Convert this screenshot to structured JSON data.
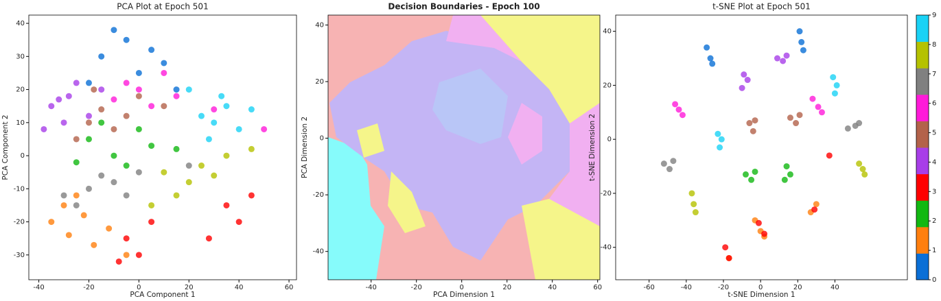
{
  "chart_data": [
    {
      "type": "scatter",
      "title": "PCA Plot at Epoch 501",
      "x_label": "PCA Component 1",
      "y_label": "PCA Component 2",
      "xlim": [
        -44,
        63
      ],
      "ylim": [
        -37.5,
        42.5
      ],
      "xticks": [
        -40,
        -20,
        0,
        20,
        40,
        60
      ],
      "yticks": [
        -30,
        -20,
        -10,
        0,
        10,
        20,
        30,
        40
      ],
      "series": [
        {
          "color": "#0a6fd6",
          "x": [
            -15,
            -5,
            0,
            5,
            10,
            -20,
            15,
            -10
          ],
          "y": [
            30,
            35,
            25,
            32,
            28,
            22,
            20,
            38
          ]
        },
        {
          "color": "#ff7f0e",
          "x": [
            -35,
            -28,
            -22,
            -30,
            -18,
            -12,
            -25,
            -5
          ],
          "y": [
            -20,
            -24,
            -18,
            -15,
            -27,
            -22,
            -12,
            -30
          ]
        },
        {
          "color": "#12b812",
          "x": [
            -20,
            -10,
            -5,
            5,
            -25,
            0,
            15,
            -15
          ],
          "y": [
            5,
            0,
            -3,
            3,
            -2,
            8,
            2,
            10
          ]
        },
        {
          "color": "#ff0000",
          "x": [
            -5,
            0,
            5,
            -8,
            35,
            40,
            45,
            28
          ],
          "y": [
            -25,
            -30,
            -20,
            -32,
            -15,
            -20,
            -12,
            -25
          ]
        },
        {
          "color": "#a83ee8",
          "x": [
            -35,
            -28,
            -20,
            -30,
            -38,
            -15,
            -25,
            -32
          ],
          "y": [
            15,
            18,
            12,
            10,
            8,
            20,
            22,
            17
          ]
        },
        {
          "color": "#b3624a",
          "x": [
            -20,
            -15,
            -10,
            -25,
            -5,
            0,
            -18,
            10
          ],
          "y": [
            10,
            14,
            8,
            5,
            12,
            18,
            20,
            15
          ]
        },
        {
          "color": "#ff1ad9",
          "x": [
            0,
            5,
            -5,
            15,
            30,
            50,
            10,
            -10
          ],
          "y": [
            20,
            15,
            22,
            18,
            14,
            8,
            25,
            17
          ]
        },
        {
          "color": "#808080",
          "x": [
            -30,
            -20,
            -15,
            -10,
            -25,
            0,
            -5,
            20
          ],
          "y": [
            -12,
            -10,
            -6,
            -8,
            -15,
            -5,
            -12,
            -3
          ]
        },
        {
          "color": "#b5c200",
          "x": [
            10,
            20,
            25,
            35,
            45,
            15,
            30,
            5
          ],
          "y": [
            -5,
            -8,
            -3,
            0,
            2,
            -12,
            -6,
            -15
          ]
        },
        {
          "color": "#1ad2f5",
          "x": [
            25,
            30,
            35,
            40,
            28,
            20,
            45,
            33
          ],
          "y": [
            12,
            10,
            15,
            8,
            5,
            20,
            14,
            18
          ]
        }
      ]
    },
    {
      "type": "decision-boundary",
      "title": "Decision Boundaries - Epoch 100",
      "x_label": "PCA Dimension 1",
      "y_label": "PCA Dimension 2",
      "xlim": [
        -59,
        61
      ],
      "ylim": [
        -50,
        43.5
      ],
      "xticks": [
        -40,
        -20,
        0,
        20,
        40,
        60
      ],
      "yticks": [
        -40,
        -20,
        0,
        20,
        40
      ]
    },
    {
      "type": "scatter",
      "title": "t-SNE Plot at Epoch 501",
      "x_label": "t-SNE Dimension 1",
      "y_label": "t-SNE Dimension 2",
      "xlim": [
        -78,
        79
      ],
      "ylim": [
        -52,
        46
      ],
      "xticks": [
        -60,
        -40,
        -20,
        0,
        20,
        40
      ],
      "yticks": [
        -40,
        -20,
        0,
        20,
        40
      ],
      "colorbar": {
        "lim": [
          0,
          9
        ],
        "ticks": [
          0,
          1,
          2,
          3,
          4,
          5,
          6,
          7,
          8,
          9
        ]
      },
      "series": [
        {
          "color": "#0a6fd6",
          "x": [
            -29,
            -27,
            -26,
            21,
            22,
            23
          ],
          "y": [
            34,
            30,
            28,
            40,
            36,
            33
          ]
        },
        {
          "color": "#ff7f0e",
          "x": [
            -3,
            0,
            2,
            30,
            27,
            -17
          ],
          "y": [
            -30,
            -34,
            -36,
            -24,
            -27,
            -44
          ]
        },
        {
          "color": "#12b812",
          "x": [
            14,
            16,
            13,
            -8,
            -5,
            -3
          ],
          "y": [
            -10,
            -13,
            -15,
            -13,
            -15,
            -12
          ]
        },
        {
          "color": "#ff0000",
          "x": [
            -19,
            -17,
            -1,
            2,
            37,
            29
          ],
          "y": [
            -40,
            -44,
            -31,
            -35,
            -6,
            -26
          ]
        },
        {
          "color": "#a83ee8",
          "x": [
            -9,
            -7,
            -10,
            9,
            12,
            14
          ],
          "y": [
            24,
            22,
            19,
            30,
            29,
            31
          ]
        },
        {
          "color": "#b3624a",
          "x": [
            -6,
            -4,
            -3,
            16,
            19,
            21
          ],
          "y": [
            6,
            3,
            7,
            8,
            6,
            9
          ]
        },
        {
          "color": "#ff1ad9",
          "x": [
            -46,
            -44,
            -42,
            28,
            31,
            33
          ],
          "y": [
            13,
            11,
            9,
            15,
            12,
            10
          ]
        },
        {
          "color": "#808080",
          "x": [
            -52,
            -49,
            -47,
            47,
            51,
            53
          ],
          "y": [
            -9,
            -11,
            -8,
            4,
            5,
            6
          ]
        },
        {
          "color": "#b5c200",
          "x": [
            -37,
            -36,
            -35,
            53,
            55,
            56
          ],
          "y": [
            -20,
            -24,
            -27,
            -9,
            -11,
            -13
          ]
        },
        {
          "color": "#1ad2f5",
          "x": [
            -23,
            -21,
            -22,
            39,
            41,
            40
          ],
          "y": [
            2,
            0,
            -3,
            23,
            20,
            17
          ]
        }
      ]
    }
  ]
}
